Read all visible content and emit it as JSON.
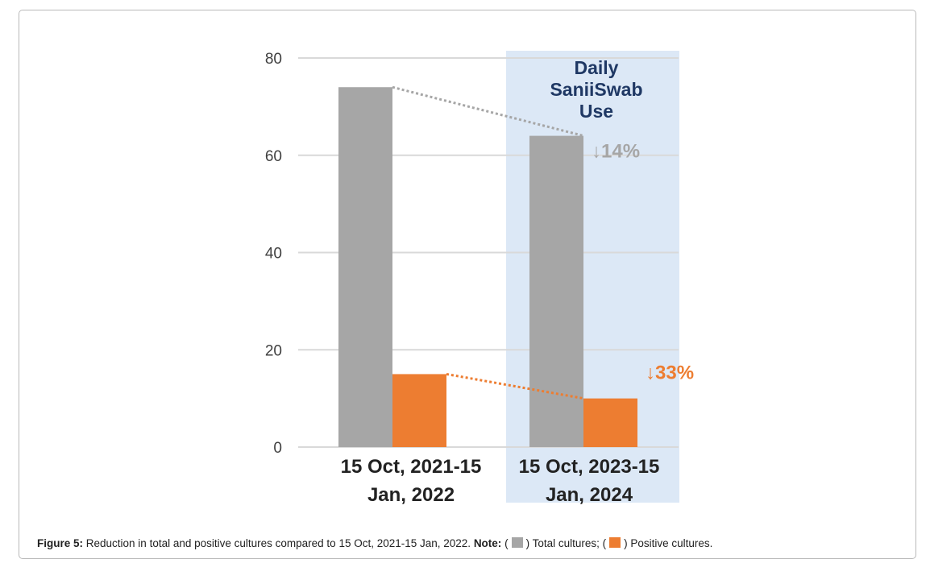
{
  "chart_data": {
    "type": "bar",
    "categories": [
      "15 Oct, 2021-15 Jan, 2022",
      "15 Oct, 2023-15 Jan, 2024"
    ],
    "category_lines": [
      [
        "15 Oct, 2021-15",
        "Jan, 2022"
      ],
      [
        "15 Oct, 2023-15",
        "Jan, 2024"
      ]
    ],
    "series": [
      {
        "name": "Total cultures",
        "color": "#a6a6a6",
        "values": [
          74,
          64
        ]
      },
      {
        "name": "Positive cultures",
        "color": "#ed7d31",
        "values": [
          15,
          10
        ]
      }
    ],
    "ylim": [
      0,
      80
    ],
    "yticks": [
      0,
      20,
      40,
      60,
      80
    ],
    "grid": true,
    "highlight": {
      "category_index": 1,
      "color": "#dce8f6",
      "label_lines": [
        "Daily",
        "SaniiSwab",
        "Use"
      ]
    },
    "annotations": [
      {
        "series": 0,
        "text": "↓14%",
        "color": "#a6a6a6"
      },
      {
        "series": 1,
        "text": "↓33%",
        "color": "#ed7d31"
      }
    ]
  },
  "caption": {
    "figure_label": "Figure 5:",
    "text": " Reduction in total and positive cultures compared to 15 Oct, 2021-15 Jan, 2022. ",
    "note_label": "Note:",
    "open1": " (",
    "legend1_text": ") Total cultures; (",
    "legend2_text": ") Positive cultures."
  }
}
